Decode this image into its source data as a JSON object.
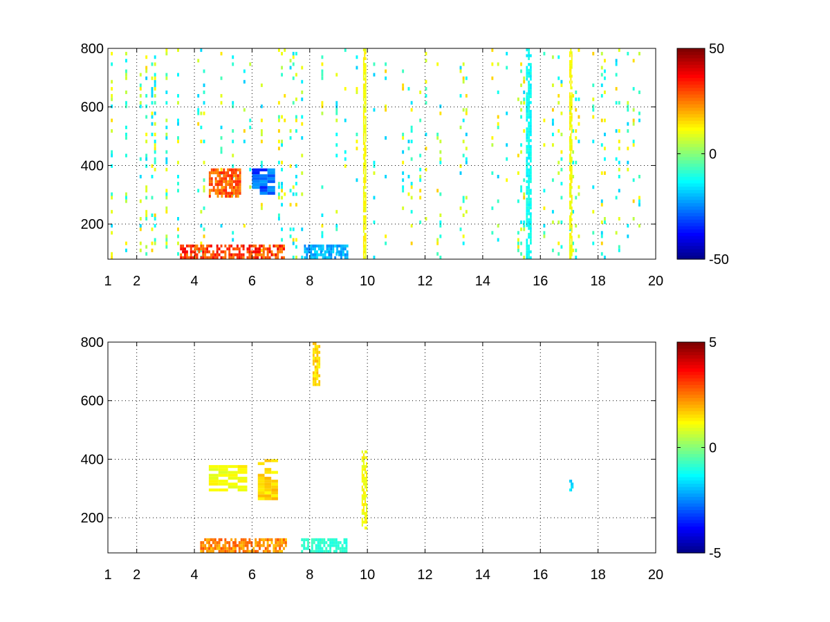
{
  "chart_data": [
    {
      "type": "heatmap",
      "title": "",
      "xlabel": "",
      "ylabel": "",
      "xlim": [
        1,
        20
      ],
      "ylim": [
        80,
        800
      ],
      "x_ticks": [
        1,
        2,
        4,
        6,
        8,
        10,
        12,
        14,
        16,
        18,
        20
      ],
      "x_tick_labels": [
        "1",
        "2",
        "4",
        "6",
        "8",
        "10",
        "12",
        "14",
        "16",
        "18",
        "20"
      ],
      "y_ticks": [
        200,
        400,
        600,
        800
      ],
      "y_tick_labels": [
        "200",
        "400",
        "600",
        "800"
      ],
      "grid": "dotted",
      "colormap": "jet",
      "clim": [
        -50,
        50
      ],
      "colorbar_ticks": [
        50,
        0,
        -50
      ],
      "colorbar_tick_labels": [
        "50",
        "0",
        "-50"
      ],
      "features": [
        {
          "x": [
            4.5,
            5.6
          ],
          "y": [
            290,
            390
          ],
          "value": 35
        },
        {
          "x": [
            6.0,
            6.8
          ],
          "y": [
            300,
            390
          ],
          "value": -35
        },
        {
          "x": [
            3.5,
            7.1
          ],
          "y": [
            80,
            130
          ],
          "value": 40
        },
        {
          "x": [
            7.8,
            9.3
          ],
          "y": [
            80,
            130
          ],
          "value": -25
        },
        {
          "x": [
            9.85,
            9.95
          ],
          "y": [
            80,
            800
          ],
          "value": 15
        },
        {
          "x": [
            15.5,
            15.7
          ],
          "y": [
            80,
            800
          ],
          "value": -15
        },
        {
          "x": [
            17.0,
            17.1
          ],
          "y": [
            80,
            800
          ],
          "value": 15
        }
      ]
    },
    {
      "type": "heatmap",
      "title": "",
      "xlabel": "",
      "ylabel": "",
      "xlim": [
        1,
        20
      ],
      "ylim": [
        80,
        800
      ],
      "x_ticks": [
        1,
        2,
        4,
        6,
        8,
        10,
        12,
        14,
        16,
        18,
        20
      ],
      "x_tick_labels": [
        "1",
        "2",
        "4",
        "6",
        "8",
        "10",
        "12",
        "14",
        "16",
        "18",
        "20"
      ],
      "y_ticks": [
        200,
        400,
        600,
        800
      ],
      "y_tick_labels": [
        "200",
        "400",
        "600",
        "800"
      ],
      "grid": "dotted",
      "colormap": "jet",
      "clim": [
        -5,
        5
      ],
      "colorbar_ticks": [
        5,
        0,
        -5
      ],
      "colorbar_tick_labels": [
        "5",
        "0",
        "-5"
      ],
      "features": [
        {
          "x": [
            4.5,
            5.5
          ],
          "y": [
            290,
            380
          ],
          "value": 1.5
        },
        {
          "x": [
            6.2,
            6.9
          ],
          "y": [
            260,
            400
          ],
          "value": 2
        },
        {
          "x": [
            4.2,
            7.2
          ],
          "y": [
            80,
            130
          ],
          "value": 3
        },
        {
          "x": [
            7.7,
            9.3
          ],
          "y": [
            80,
            130
          ],
          "value": -1
        },
        {
          "x": [
            8.1,
            8.3
          ],
          "y": [
            650,
            800
          ],
          "value": 2
        },
        {
          "x": [
            9.8,
            9.95
          ],
          "y": [
            160,
            430
          ],
          "value": 1.5
        },
        {
          "x": [
            17.0,
            17.15
          ],
          "y": [
            290,
            330
          ],
          "value": -2
        }
      ]
    }
  ]
}
